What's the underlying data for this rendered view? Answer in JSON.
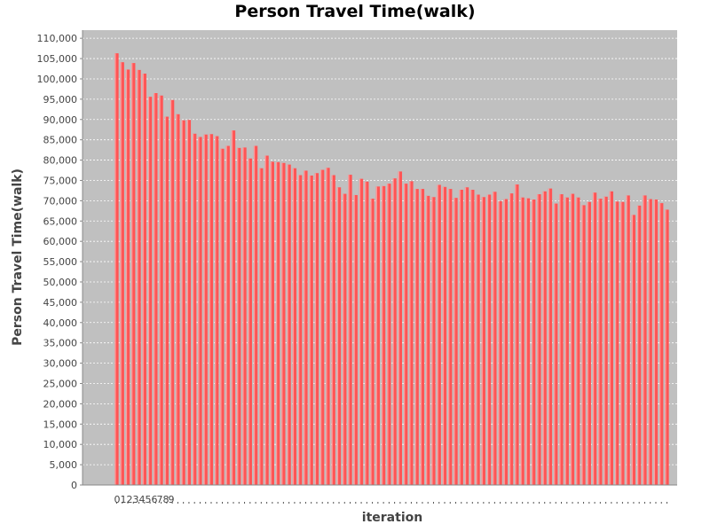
{
  "chart_data": {
    "type": "bar",
    "title": "Person Travel Time(walk)",
    "xlabel": "iteration",
    "ylabel": "Person Travel Time(walk)",
    "ylim": [
      0,
      112000
    ],
    "ytick_step": 5000,
    "grid": true,
    "legend": "none",
    "colors": {
      "bar": "#ff5555",
      "plot_bg": "#c0c0c0",
      "grid": "#ffffff",
      "axis": "#888888"
    },
    "categories": [
      "0",
      "1",
      "2",
      "3",
      "4",
      "5",
      "6",
      "7",
      "8",
      "9",
      "10",
      "11",
      "12",
      "13",
      "14",
      "15",
      "16",
      "17",
      "18",
      "19",
      "20",
      "21",
      "22",
      "23",
      "24",
      "25",
      "26",
      "27",
      "28",
      "29",
      "30",
      "31",
      "32",
      "33",
      "34",
      "35",
      "36",
      "37",
      "38",
      "39",
      "40",
      "41",
      "42",
      "43",
      "44",
      "45",
      "46",
      "47",
      "48",
      "49",
      "50",
      "51",
      "52",
      "53",
      "54",
      "55",
      "56",
      "57",
      "58",
      "59",
      "60",
      "61",
      "62",
      "63",
      "64",
      "65",
      "66",
      "67",
      "68",
      "69",
      "70",
      "71",
      "72",
      "73",
      "74",
      "75",
      "76",
      "77",
      "78",
      "79",
      "80",
      "81",
      "82",
      "83",
      "84",
      "85",
      "86",
      "87",
      "88",
      "89",
      "90",
      "91",
      "92",
      "93",
      "94",
      "95",
      "96",
      "97",
      "98",
      "99"
    ],
    "values": [
      106300,
      104100,
      102300,
      103900,
      102200,
      101300,
      95600,
      96500,
      95900,
      90700,
      94800,
      91300,
      89800,
      89900,
      86500,
      85700,
      86300,
      86400,
      85900,
      82800,
      83500,
      87300,
      83000,
      83100,
      80400,
      83500,
      78000,
      81100,
      79600,
      79500,
      79300,
      78900,
      78000,
      76300,
      77400,
      76200,
      76800,
      77600,
      78100,
      76300,
      73300,
      71700,
      76400,
      71400,
      75400,
      74700,
      70500,
      73500,
      73600,
      74200,
      75500,
      77200,
      74200,
      74800,
      72900,
      72900,
      71200,
      70900,
      73900,
      73400,
      72900,
      70700,
      72700,
      73300,
      72700,
      71500,
      70900,
      71500,
      72200,
      69900,
      70400,
      71800,
      74000,
      70800,
      70600,
      70300,
      71600,
      72300,
      73000,
      69300,
      71600,
      70800,
      71700,
      70800,
      68900,
      69700,
      72000,
      70500,
      71000,
      72300,
      69800,
      69700,
      71300,
      66500,
      68800,
      71300,
      70400,
      70300,
      69400,
      67800
    ]
  },
  "x_tick_labels_shown": [
    "0",
    "1",
    "2",
    "3",
    "4",
    "5",
    "6",
    "7",
    "8",
    "9"
  ]
}
